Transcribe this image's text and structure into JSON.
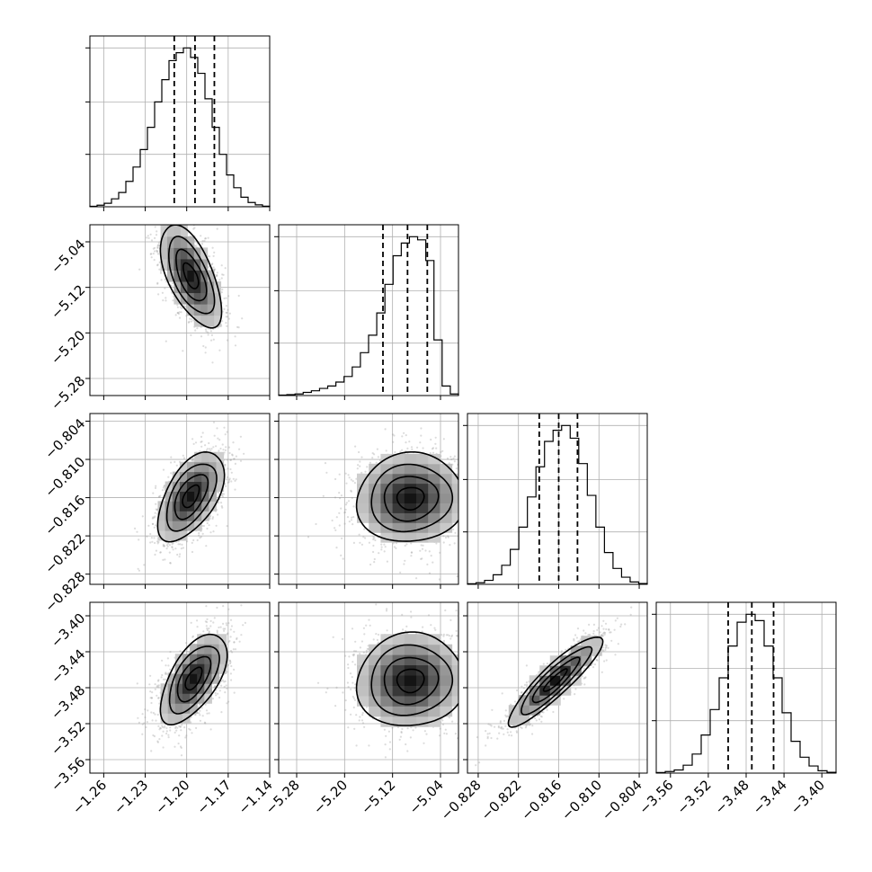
{
  "chart_data": {
    "type": "corner",
    "title": "",
    "grid": true,
    "parameters": [
      {
        "range": [
          -1.27,
          -1.14
        ],
        "ticks": [
          "−1.26",
          "−1.23",
          "−1.20",
          "−1.17",
          "−1.14"
        ],
        "tick_values": [
          -1.26,
          -1.23,
          -1.2,
          -1.17,
          -1.14
        ],
        "quantiles": [
          -1.209,
          -1.194,
          -1.18
        ],
        "hist": [
          0.003,
          0.01,
          0.022,
          0.05,
          0.09,
          0.16,
          0.25,
          0.36,
          0.5,
          0.66,
          0.8,
          0.92,
          0.97,
          1.0,
          0.94,
          0.84,
          0.68,
          0.5,
          0.33,
          0.2,
          0.12,
          0.06,
          0.027,
          0.012,
          0.004
        ]
      },
      {
        "range": [
          -5.31,
          -5.01
        ],
        "ticks": [
          "−5.28",
          "−5.20",
          "−5.12",
          "−5.04"
        ],
        "tick_values": [
          -5.28,
          -5.2,
          -5.12,
          -5.04
        ],
        "quantiles": [
          -5.136,
          -5.095,
          -5.062
        ],
        "hist": [
          0.003,
          0.006,
          0.01,
          0.02,
          0.03,
          0.045,
          0.06,
          0.085,
          0.12,
          0.18,
          0.27,
          0.38,
          0.52,
          0.7,
          0.88,
          0.96,
          1.0,
          0.98,
          0.85,
          0.35,
          0.06,
          0.01
        ]
      },
      {
        "range": [
          -0.8296,
          -0.8028
        ],
        "ticks": [
          "−0.804",
          "−0.810",
          "−0.816",
          "−0.822",
          "−0.828"
        ],
        "tick_values": [
          -0.804,
          -0.81,
          -0.816,
          -0.822,
          -0.828
        ],
        "quantiles": [
          -0.8189,
          -0.816,
          -0.8132
        ],
        "hist": [
          0.004,
          0.01,
          0.025,
          0.06,
          0.12,
          0.22,
          0.36,
          0.55,
          0.74,
          0.9,
          0.97,
          1.0,
          0.92,
          0.76,
          0.56,
          0.36,
          0.2,
          0.1,
          0.045,
          0.015,
          0.005
        ]
      },
      {
        "range": [
          -3.575,
          -3.385
        ],
        "ticks": [
          "−3.40",
          "−3.44",
          "−3.48",
          "−3.52",
          "−3.56"
        ],
        "tick_values": [
          -3.4,
          -3.44,
          -3.48,
          -3.52,
          -3.56
        ],
        "quantiles": [
          -3.499,
          -3.474,
          -3.451
        ],
        "hist": [
          0.004,
          0.01,
          0.02,
          0.05,
          0.12,
          0.24,
          0.4,
          0.6,
          0.8,
          0.95,
          1.0,
          0.96,
          0.8,
          0.6,
          0.38,
          0.2,
          0.1,
          0.045,
          0.015,
          0.005
        ]
      }
    ],
    "pairs": [
      {
        "row": 1,
        "col": 0,
        "center": [
          -1.197,
          -5.1
        ],
        "sigma": [
          0.011,
          0.045
        ],
        "rho": -0.6
      },
      {
        "row": 2,
        "col": 0,
        "center": [
          -1.197,
          -0.8158
        ],
        "sigma": [
          0.012,
          0.0035
        ],
        "rho": 0.55
      },
      {
        "row": 2,
        "col": 1,
        "center": [
          -5.09,
          -0.8161
        ],
        "sigma": [
          0.045,
          0.0035
        ],
        "rho": 0.05
      },
      {
        "row": 3,
        "col": 0,
        "center": [
          -1.195,
          -3.47
        ],
        "sigma": [
          0.012,
          0.025
        ],
        "rho": 0.6
      },
      {
        "row": 3,
        "col": 1,
        "center": [
          -5.09,
          -3.472
        ],
        "sigma": [
          0.045,
          0.026
        ],
        "rho": 0.05
      },
      {
        "row": 3,
        "col": 2,
        "center": [
          -0.8165,
          -3.472
        ],
        "sigma": [
          0.0035,
          0.025
        ],
        "rho": 0.9
      }
    ]
  }
}
